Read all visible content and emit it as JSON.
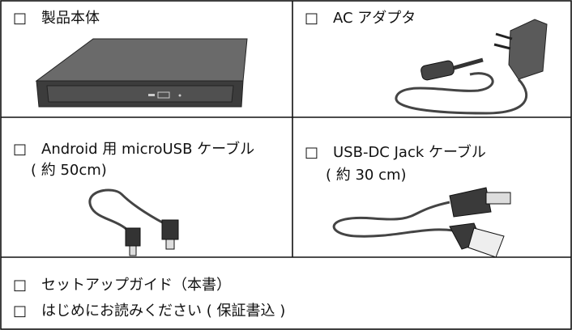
{
  "cells": [
    {
      "lines": [
        "□　製品本体"
      ]
    },
    {
      "lines": [
        "□　AC アダプタ"
      ]
    },
    {
      "lines": [
        "□　Android 用 microUSB ケーブル",
        "( 約 50cm)"
      ]
    },
    {
      "lines": [
        "□　USB-DC Jack ケーブル",
        "( 約 30 cm)"
      ]
    },
    {
      "lines": [
        "□　セットアップガイド（本書）",
        "□　はじめにお読みください ( 保証書込 )"
      ]
    }
  ]
}
